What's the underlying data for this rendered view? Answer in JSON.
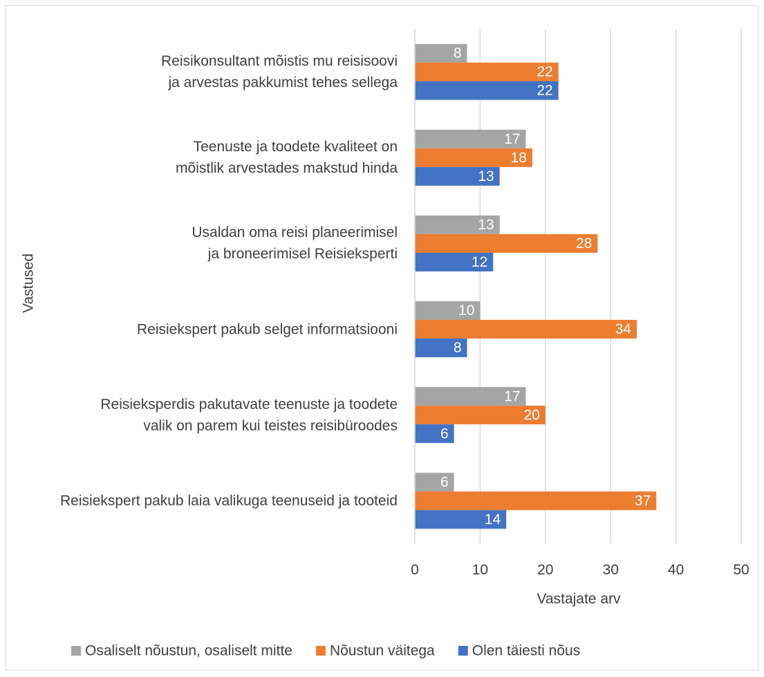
{
  "chart_data": {
    "type": "hbar",
    "categories": [
      "Reisikonsultant mõistis mu reisisoovi ja arvestas pakkumist tehes sellega",
      "Teenuste ja toodete kvaliteet on mõistlik arvestades makstud hinda",
      "Usaldan oma reisi planeerimisel ja broneerimisel Reisieksperti",
      "Reisiekspert pakub selget informatsiooni",
      "Reisieksperdis pakutavate teenuste ja toodete valik on parem kui teistes reisibüroodes",
      "Reisiekspert pakub laia valikuga teenuseid ja tooteid"
    ],
    "series": [
      {
        "name": "Osaliselt nõustun, osaliselt mitte",
        "color": "#a5a5a5",
        "values": [
          8,
          17,
          13,
          10,
          17,
          6
        ]
      },
      {
        "name": "Nõustun väitega",
        "color": "#ed7d31",
        "values": [
          22,
          18,
          28,
          34,
          20,
          37
        ]
      },
      {
        "name": "Olen täiesti nõus",
        "color": "#4472c4",
        "values": [
          22,
          13,
          12,
          8,
          6,
          14
        ]
      }
    ],
    "xlabel": "Vastajate arv",
    "ylabel": "Vastused",
    "xlim": [
      0,
      50
    ],
    "xticks": [
      0,
      10,
      20,
      30,
      40,
      50
    ],
    "grid": true,
    "legend": "bottom"
  }
}
